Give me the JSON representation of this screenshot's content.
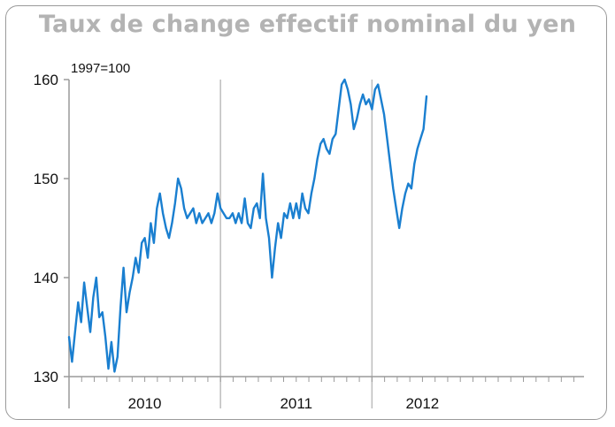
{
  "chart_data": {
    "type": "line",
    "title": "Taux de change effectif nominal du yen",
    "note": "1997=100",
    "xlabel": "",
    "ylabel": "",
    "ylim": [
      130,
      160
    ],
    "yticks": [
      "160",
      "150",
      "140",
      "130"
    ],
    "ytick_values": [
      160,
      150,
      140,
      130
    ],
    "xlim": [
      2009.0,
      2012.4
    ],
    "year_labels": [
      "2010",
      "2011",
      "2012"
    ],
    "year_label_positions": [
      2009.5,
      2010.5,
      2011.333
    ],
    "grid": "vertical at year boundaries",
    "year_boundaries": [
      2010.0,
      2011.0
    ],
    "color": "#1a7fd0",
    "series": [
      {
        "x": [
          2009.0,
          2009.02,
          2009.04,
          2009.06,
          2009.08,
          2009.1,
          2009.12,
          2009.14,
          2009.16,
          2009.18,
          2009.2,
          2009.22,
          2009.24,
          2009.26,
          2009.28,
          2009.3,
          2009.32,
          2009.34,
          2009.36,
          2009.38,
          2009.4,
          2009.42,
          2009.44,
          2009.46,
          2009.48,
          2009.5,
          2009.52,
          2009.54,
          2009.56,
          2009.58,
          2009.6,
          2009.62,
          2009.64,
          2009.66,
          2009.68,
          2009.7,
          2009.72,
          2009.74,
          2009.76,
          2009.78,
          2009.8,
          2009.82,
          2009.84,
          2009.86,
          2009.88,
          2009.9,
          2009.92,
          2009.94,
          2009.96,
          2009.98,
          2010.0,
          2010.02,
          2010.04,
          2010.06,
          2010.08,
          2010.1,
          2010.12,
          2010.14,
          2010.16,
          2010.18,
          2010.2,
          2010.22,
          2010.24,
          2010.26,
          2010.28,
          2010.3,
          2010.32,
          2010.34,
          2010.36,
          2010.38,
          2010.4,
          2010.42,
          2010.44,
          2010.46,
          2010.48,
          2010.5,
          2010.52,
          2010.54,
          2010.56,
          2010.58,
          2010.6,
          2010.62,
          2010.64,
          2010.66,
          2010.68,
          2010.7,
          2010.72,
          2010.74,
          2010.76,
          2010.78,
          2010.8,
          2010.82,
          2010.84,
          2010.86,
          2010.88,
          2010.9,
          2010.92,
          2010.94,
          2010.96,
          2010.98,
          2011.0,
          2011.02,
          2011.04,
          2011.06,
          2011.08,
          2011.1,
          2011.12,
          2011.14,
          2011.16,
          2011.18,
          2011.2,
          2011.22,
          2011.24,
          2011.26,
          2011.28,
          2011.3,
          2011.32,
          2011.34,
          2011.36
        ],
        "values": [
          134.0,
          131.5,
          134.5,
          137.5,
          135.5,
          139.5,
          137.0,
          134.5,
          138.0,
          140.0,
          136.0,
          136.5,
          134.0,
          130.8,
          133.5,
          130.5,
          132.0,
          137.0,
          141.0,
          136.5,
          138.5,
          140.0,
          142.0,
          140.5,
          143.5,
          144.0,
          142.0,
          145.5,
          143.5,
          147.0,
          148.5,
          146.5,
          145.0,
          144.0,
          145.5,
          147.5,
          150.0,
          149.0,
          147.0,
          146.0,
          146.5,
          147.0,
          145.5,
          146.5,
          145.5,
          146.0,
          146.5,
          145.5,
          146.5,
          148.5,
          147.0,
          146.5,
          146.0,
          146.0,
          146.5,
          145.5,
          146.5,
          145.5,
          148.0,
          145.5,
          145.0,
          147.0,
          147.5,
          146.0,
          150.5,
          146.0,
          144.0,
          140.0,
          143.0,
          145.5,
          144.0,
          146.5,
          146.0,
          147.5,
          146.0,
          147.5,
          146.0,
          148.5,
          147.0,
          146.5,
          148.5,
          150.0,
          152.0,
          153.5,
          154.0,
          153.0,
          152.5,
          154.0,
          154.5,
          157.0,
          159.5,
          160.0,
          159.0,
          157.5,
          155.0,
          156.0,
          157.5,
          158.5,
          157.5,
          158.0,
          157.0,
          159.0,
          159.5,
          158.0,
          156.5,
          154.0,
          151.5,
          149.0,
          147.0,
          145.0,
          147.0,
          148.5,
          149.5,
          149.0,
          151.5,
          153.0,
          154.0,
          155.0,
          158.3
        ]
      }
    ]
  }
}
